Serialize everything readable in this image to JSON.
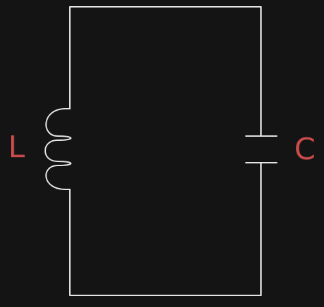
{
  "diagram": {
    "kind": "LC circuit",
    "components": [
      {
        "id": "inductor",
        "type": "inductor",
        "label": "L"
      },
      {
        "id": "capacitor",
        "type": "capacitor",
        "label": "C"
      }
    ],
    "colors": {
      "background": "#141414",
      "wire": "#e6e6e6",
      "label": "#c94b4b"
    }
  }
}
